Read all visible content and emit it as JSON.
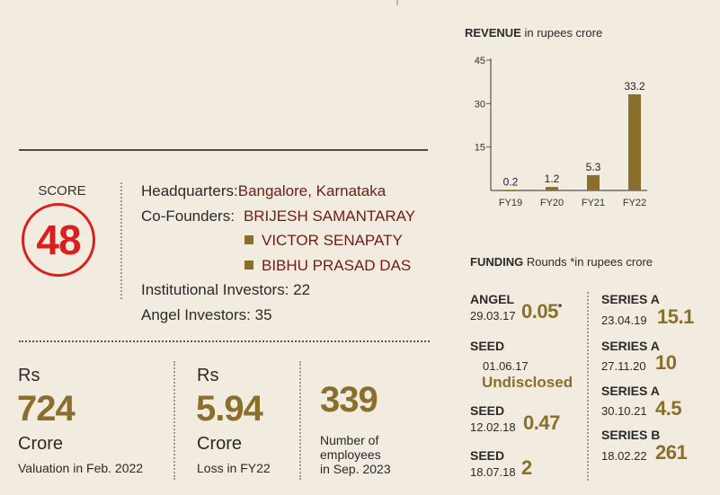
{
  "score": {
    "label": "SCORE",
    "value": "48"
  },
  "info": {
    "hq_label": "Headquarters:",
    "hq_value": "Bangalore, Karnataka",
    "cofounders_label": "Co-Founders:",
    "cofounders": [
      "BRIJESH SAMANTARAY",
      "VICTOR SENAPATY",
      "BIBHU PRASAD DAS"
    ],
    "institutional": "Institutional Investors: 22",
    "angel": "Angel Investors: 35"
  },
  "stats": {
    "valuation": {
      "prefix": "Rs",
      "value": "724",
      "unit": "Crore",
      "desc": "Valuation in Feb. 2022"
    },
    "loss": {
      "prefix": "Rs",
      "value": "5.94",
      "unit": "Crore",
      "desc": "Loss in FY22"
    },
    "employees": {
      "value": "339",
      "desc": [
        "Number of",
        "employees",
        "in Sep. 2023"
      ]
    }
  },
  "revenue": {
    "title_bold": "REVENUE",
    "title_rest": " in rupees crore"
  },
  "funding": {
    "title_bold": "FUNDING",
    "title_rest": " Rounds *in rupees crore",
    "rounds": [
      {
        "label": "ANGEL",
        "date": "29.03.17",
        "amount": "0.05",
        "mark": "*"
      },
      {
        "label": "SEED",
        "date": "01.06.17",
        "amount": "Undisclosed"
      },
      {
        "label": "SEED",
        "date": "12.02.18",
        "amount": "0.47"
      },
      {
        "label": "SEED",
        "date": "18.07.18",
        "amount": "2"
      },
      {
        "label": "SERIES A",
        "date": "23.04.19",
        "amount": "15.1"
      },
      {
        "label": "SERIES A",
        "date": "27.11.20",
        "amount": "10"
      },
      {
        "label": "SERIES A",
        "date": "30.10.21",
        "amount": "4.5"
      },
      {
        "label": "SERIES B",
        "date": "18.02.22",
        "amount": "261"
      }
    ]
  },
  "chart_data": {
    "type": "bar",
    "title": "REVENUE in rupees crore",
    "categories": [
      "FY19",
      "FY20",
      "FY21",
      "FY22"
    ],
    "values": [
      0.2,
      1.2,
      5.3,
      33.2
    ],
    "value_labels": [
      "0.2",
      "1.2",
      "5.3",
      "33.2"
    ],
    "yticks": [
      15,
      30,
      45
    ],
    "ylim": [
      0,
      45
    ],
    "grid": false,
    "colors": {
      "bar": "#8a6e2c",
      "axis": "#555555"
    }
  }
}
